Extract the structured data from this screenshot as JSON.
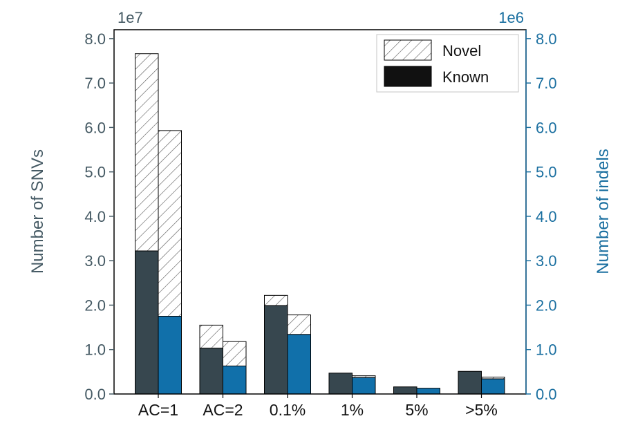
{
  "chart_data": {
    "type": "bar",
    "categories": [
      "AC=1",
      "AC=2",
      "0.1%",
      "1%",
      "5%",
      ">5%"
    ],
    "series": [
      {
        "name": "SNVs",
        "axis": "left",
        "known": [
          32200000.0,
          10300000.0,
          19900000.0,
          4700000.0,
          1600000.0,
          5100000.0
        ],
        "total": [
          76600000.0,
          15500000.0,
          22200000.0,
          4700000.0,
          1600000.0,
          5100000.0
        ]
      },
      {
        "name": "indels",
        "axis": "right",
        "known": [
          1750000.0,
          630000.0,
          1340000.0,
          370000.0,
          130000.0,
          340000.0
        ],
        "total": [
          5930000.0,
          1180000.0,
          1780000.0,
          410000.0,
          130000.0,
          380000.0
        ]
      }
    ],
    "y_left": {
      "label": "Number of SNVs",
      "offset_text": "1e7",
      "scale": 10000000.0,
      "ticks": [
        "0.0",
        "1.0",
        "2.0",
        "3.0",
        "4.0",
        "5.0",
        "6.0",
        "7.0",
        "8.0"
      ],
      "ylim": [
        0,
        82000000.0
      ]
    },
    "y_right": {
      "label": "Number of indels",
      "offset_text": "1e6",
      "scale": 1000000.0,
      "ticks": [
        "0.0",
        "1.0",
        "2.0",
        "3.0",
        "4.0",
        "5.0",
        "6.0",
        "7.0",
        "8.0"
      ],
      "ylim": [
        0,
        8200000.0
      ]
    },
    "legend": {
      "placement": "top-right",
      "entries": [
        {
          "label": "Novel",
          "style": "hatched"
        },
        {
          "label": "Known",
          "style": "solid"
        }
      ]
    },
    "colors": {
      "snv": "#37474f",
      "indel": "#1170aa",
      "left_axis_text": "#455a64",
      "right_axis_text": "#1a6fa0",
      "hatch": "#555555"
    },
    "grid": false
  }
}
